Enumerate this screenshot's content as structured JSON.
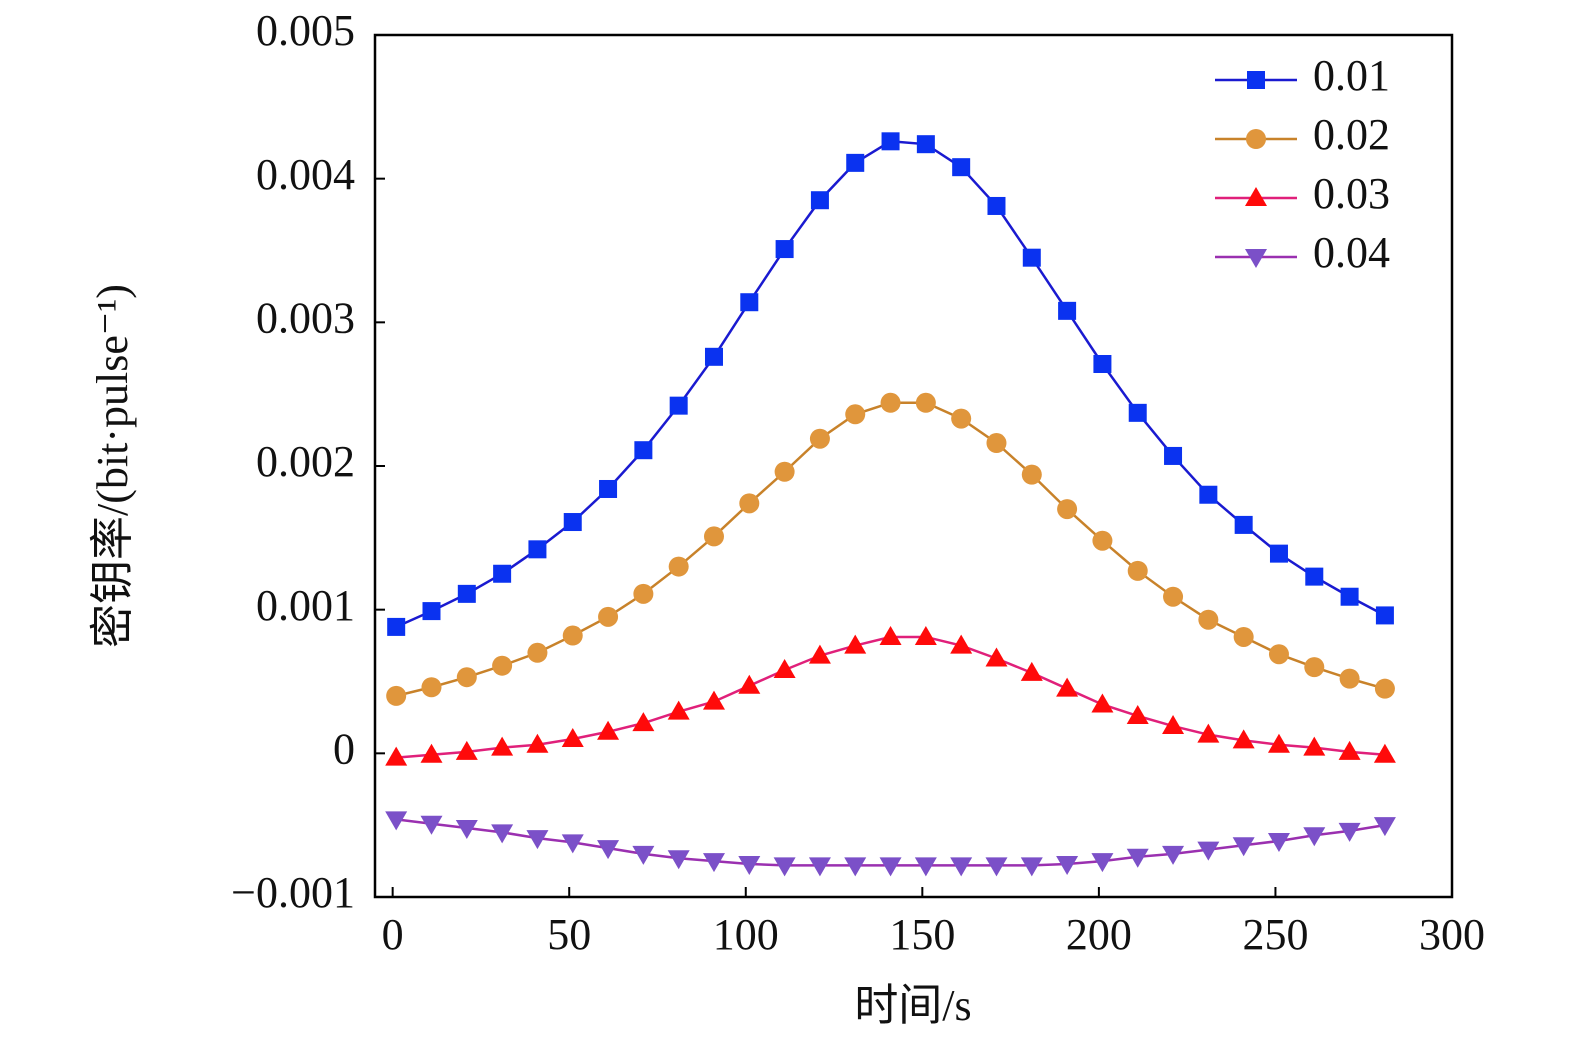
{
  "chart_data": {
    "type": "line",
    "x_label": "时间/s",
    "y_label": "密钥率/(bit·pulse⁻¹)",
    "x": [
      1,
      11,
      21,
      31,
      41,
      51,
      61,
      71,
      81,
      91,
      101,
      111,
      121,
      131,
      141,
      151,
      161,
      171,
      181,
      191,
      201,
      211,
      221,
      231,
      241,
      251,
      261,
      271,
      281
    ],
    "series": [
      {
        "name": "0.01",
        "color": "#0a32f0",
        "line_color": "#1a1ad0",
        "marker": "square",
        "values": [
          0.00088,
          0.00099,
          0.00111,
          0.00125,
          0.00142,
          0.00161,
          0.00184,
          0.00211,
          0.00242,
          0.00276,
          0.00314,
          0.00351,
          0.00385,
          0.00411,
          0.00426,
          0.00424,
          0.00408,
          0.00381,
          0.00345,
          0.00308,
          0.00271,
          0.00237,
          0.00207,
          0.0018,
          0.00159,
          0.00139,
          0.00123,
          0.00109,
          0.00096
        ]
      },
      {
        "name": "0.02",
        "color": "#e0963c",
        "line_color": "#c8822a",
        "marker": "circle",
        "values": [
          0.0004,
          0.00046,
          0.00053,
          0.00061,
          0.0007,
          0.00082,
          0.00095,
          0.00111,
          0.0013,
          0.00151,
          0.00174,
          0.00196,
          0.00219,
          0.00236,
          0.00244,
          0.00244,
          0.00233,
          0.00216,
          0.00194,
          0.0017,
          0.00148,
          0.00127,
          0.00109,
          0.00093,
          0.00081,
          0.00069,
          0.0006,
          0.00052,
          0.00045
        ]
      },
      {
        "name": "0.03",
        "color": "#ff0a0a",
        "line_color": "#e0207a",
        "marker": "triangle-up",
        "values": [
          -3e-05,
          -1e-05,
          1e-05,
          4e-05,
          6e-05,
          0.0001,
          0.00015,
          0.00021,
          0.00029,
          0.00036,
          0.00047,
          0.00058,
          0.00068,
          0.00075,
          0.00081,
          0.00081,
          0.00075,
          0.00066,
          0.00056,
          0.00045,
          0.00034,
          0.00026,
          0.00019,
          0.00013,
          9e-05,
          6e-05,
          4e-05,
          1e-05,
          -1e-05
        ]
      },
      {
        "name": "0.04",
        "color": "#7b50c8",
        "line_color": "#9a30b0",
        "marker": "triangle-down",
        "values": [
          -0.00046,
          -0.00049,
          -0.00052,
          -0.00055,
          -0.00059,
          -0.00062,
          -0.00066,
          -0.0007,
          -0.00073,
          -0.00075,
          -0.00077,
          -0.00078,
          -0.00078,
          -0.00078,
          -0.00078,
          -0.00078,
          -0.00078,
          -0.00078,
          -0.00078,
          -0.00077,
          -0.00075,
          -0.00072,
          -0.0007,
          -0.00067,
          -0.00064,
          -0.00061,
          -0.00057,
          -0.00054,
          -0.0005
        ]
      }
    ],
    "xlim": [
      -5,
      300
    ],
    "xticks": [
      0,
      50,
      100,
      150,
      200,
      250,
      300
    ],
    "ylim": [
      -0.001,
      0.005
    ],
    "yticks": [
      {
        "value": -0.001,
        "label": "−0.001"
      },
      0,
      0.001,
      0.002,
      0.003,
      0.004,
      0.005
    ],
    "legend": "upper right",
    "grid": false
  }
}
